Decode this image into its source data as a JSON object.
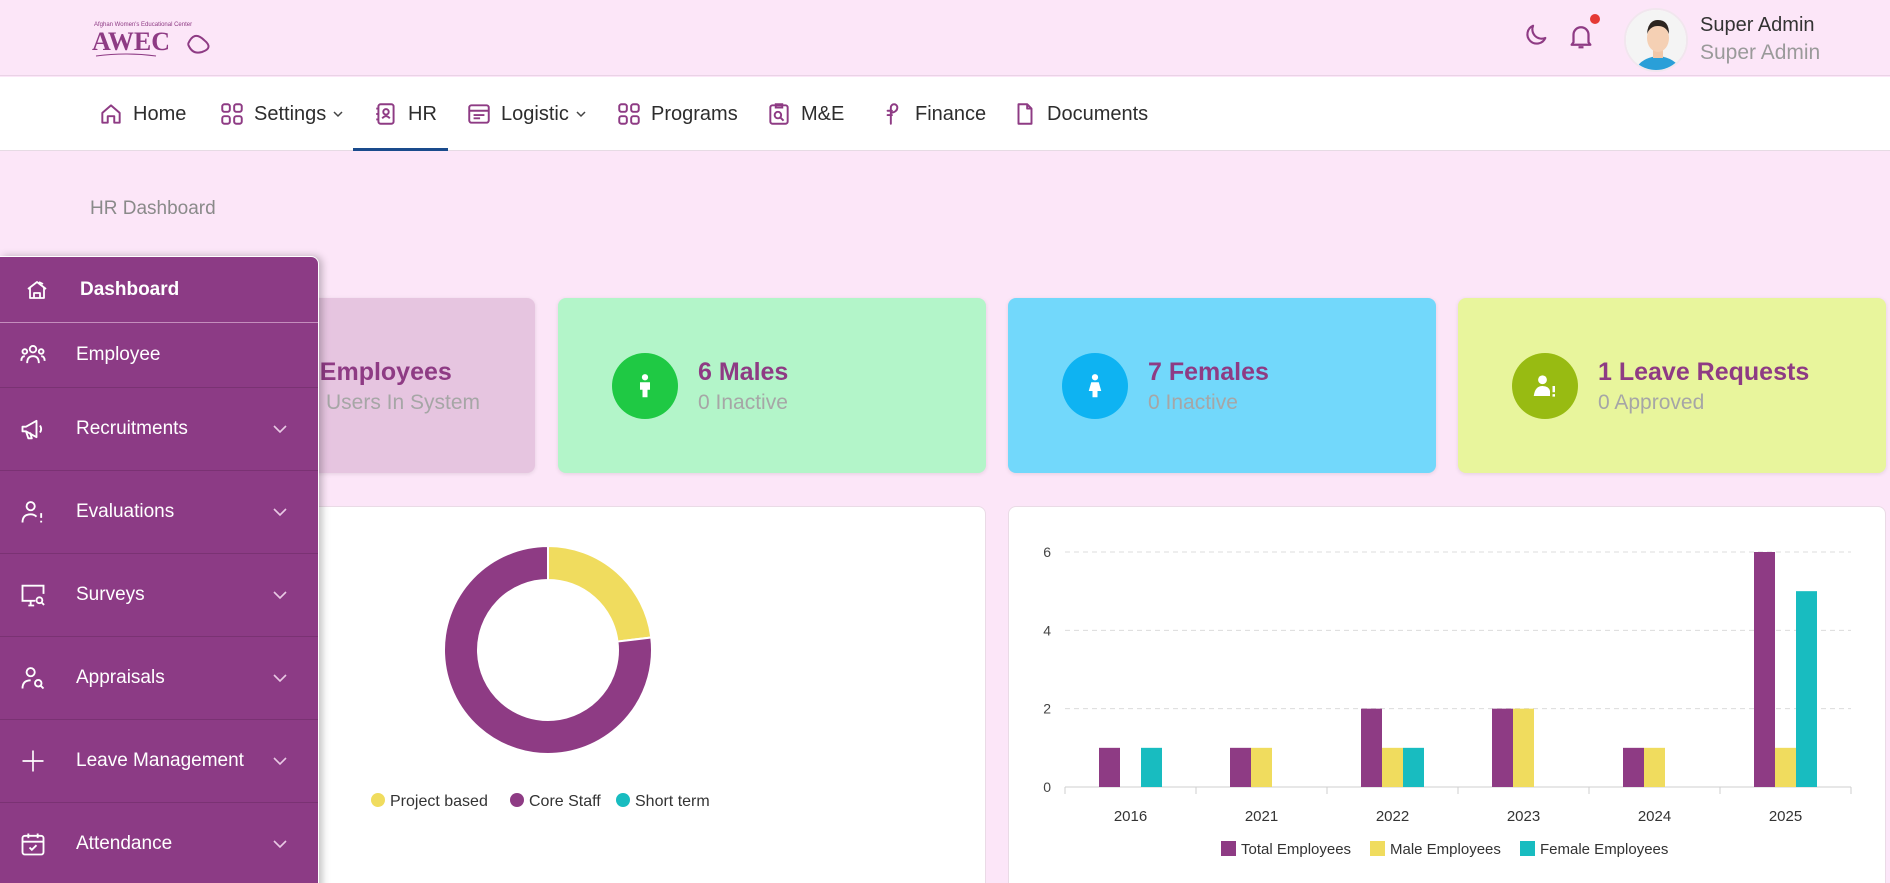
{
  "app": {
    "logo_text": "AWEC",
    "logo_subtitle": "Afghan Women's Educational Center"
  },
  "header": {
    "user_name": "Super Admin",
    "user_role": "Super Admin"
  },
  "nav": {
    "items": [
      {
        "label": "Home"
      },
      {
        "label": "Settings"
      },
      {
        "label": "HR"
      },
      {
        "label": "Logistic"
      },
      {
        "label": "Programs"
      },
      {
        "label": "M&E"
      },
      {
        "label": "Finance"
      },
      {
        "label": "Documents"
      }
    ]
  },
  "breadcrumb": "HR Dashboard",
  "cards": [
    {
      "title": "Total Employees",
      "title_visible": "al Employees",
      "sub_visible": "Users In System"
    },
    {
      "title": "6 Males",
      "sub": "0 Inactive"
    },
    {
      "title": "7 Females",
      "sub": "0 Inactive"
    },
    {
      "title": "1 Leave Requests",
      "sub": "0 Approved"
    }
  ],
  "colors": {
    "brand": "#8e3b84",
    "yellow": "#f0dc5e",
    "teal": "#18bcc0",
    "card_total": "#e6c5e0",
    "card_males": "#b3f5c9",
    "card_females": "#72d8fb",
    "card_leave": "#e8f59c"
  },
  "sidebar": {
    "header": "Dashboard",
    "items": [
      {
        "label": "Employee",
        "icon": "users-icon"
      },
      {
        "label": "Recruitments",
        "icon": "megaphone-icon"
      },
      {
        "label": "Evaluations",
        "icon": "user-alert-icon"
      },
      {
        "label": "Surveys",
        "icon": "monitor-search-icon"
      },
      {
        "label": "Appraisals",
        "icon": "user-search-icon"
      },
      {
        "label": "Leave Management",
        "icon": "plus-icon"
      },
      {
        "label": "Attendance",
        "icon": "calendar-check-icon"
      }
    ]
  },
  "chart_data": [
    {
      "type": "pie",
      "title": "",
      "labels": [
        "Project based",
        "Core Staff",
        "Short term"
      ],
      "values": [
        3,
        10,
        0
      ],
      "colors": [
        "#f0dc5e",
        "#8e3b84",
        "#18bcc0"
      ],
      "donut": true,
      "legend": "bottom"
    },
    {
      "type": "bar",
      "categories": [
        "2016",
        "2021",
        "2022",
        "2023",
        "2024",
        "2025"
      ],
      "series": [
        {
          "name": "Total Employees",
          "values": [
            1,
            1,
            2,
            2,
            1,
            6
          ],
          "color": "#8e3b84"
        },
        {
          "name": "Male Employees",
          "values": [
            0,
            1,
            1,
            2,
            1,
            1
          ],
          "color": "#f0dc5e"
        },
        {
          "name": "Female Employees",
          "values": [
            1,
            0,
            1,
            0,
            0,
            5
          ],
          "color": "#18bcc0"
        }
      ],
      "yticks": [
        0,
        2,
        4,
        6
      ],
      "ylim": [
        0,
        6
      ],
      "legend": "bottom"
    }
  ]
}
